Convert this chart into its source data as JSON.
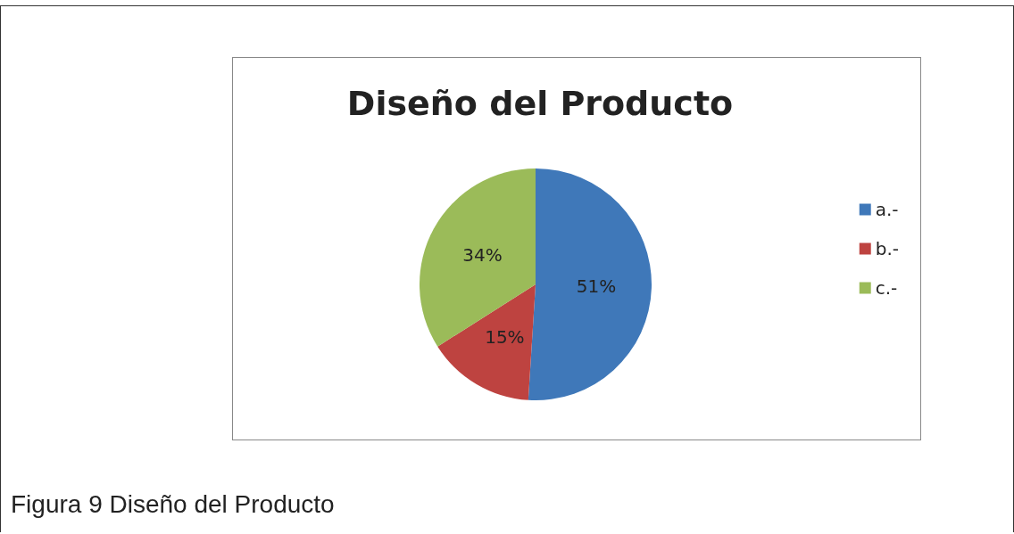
{
  "chart_data": {
    "type": "pie",
    "title": "Diseño del Producto",
    "categories": [
      "a.-",
      "b.-",
      "c.-"
    ],
    "values": [
      51,
      15,
      34
    ],
    "colors": [
      "#3f78b9",
      "#be4340",
      "#9bbb59"
    ],
    "value_labels": [
      "51%",
      "15%",
      "34%"
    ],
    "legend": "right",
    "annotations": [
      "Figura 9 Diseño del Producto"
    ]
  }
}
